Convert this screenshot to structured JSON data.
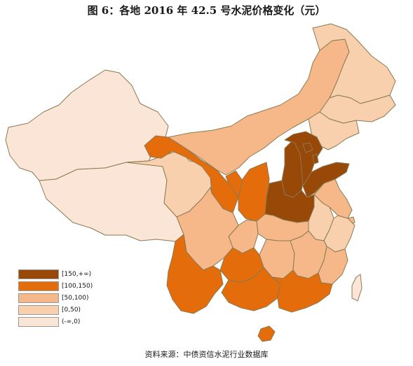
{
  "title": "图 6：各地 2016 年 42.5 号水泥价格变化（元）",
  "source": "资料来源：中债资信水泥行业数据库",
  "colors": {
    "border": "#8a7a52",
    "c0": "#fbe5d6",
    "c1": "#f9d0ae",
    "c2": "#f6b888",
    "c3": "#e46c0a",
    "c4": "#984807"
  },
  "legend": [
    {
      "label": "[150,+∞)",
      "color": "#984807"
    },
    {
      "label": "[100,150)",
      "color": "#e46c0a"
    },
    {
      "label": "[50,100)",
      "color": "#f6b888"
    },
    {
      "label": "[0,50)",
      "color": "#f9d0ae"
    },
    {
      "label": "(-∞,0)",
      "color": "#fbe5d6"
    }
  ]
}
